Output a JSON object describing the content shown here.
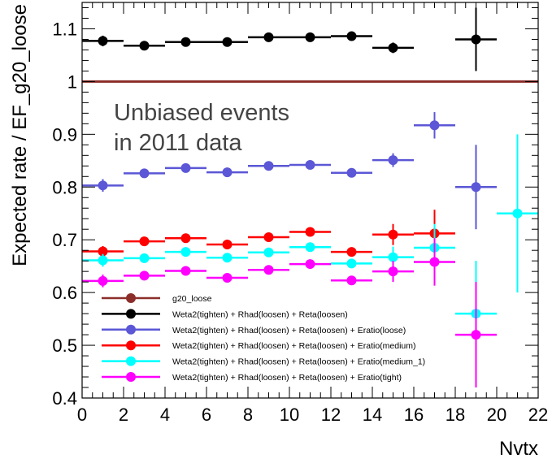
{
  "chart_data": {
    "type": "scatter",
    "title": "",
    "annotation": [
      "Unbiased events",
      "in 2011 data"
    ],
    "xlabel": "Nvtx",
    "ylabel": "Expected rate / EF_g20_loose",
    "xlim": [
      0,
      22
    ],
    "ylim": [
      0.4,
      1.15
    ],
    "x_ticks": [
      0,
      2,
      4,
      6,
      8,
      10,
      12,
      14,
      16,
      18,
      20,
      22
    ],
    "y_ticks": [
      0.4,
      0.5,
      0.6,
      0.7,
      0.8,
      0.9,
      1,
      1.1
    ],
    "x_tick_labels": [
      "0",
      "2",
      "4",
      "6",
      "8",
      "10",
      "12",
      "14",
      "16",
      "18",
      "20",
      "22"
    ],
    "y_tick_labels": [
      "0.4",
      "0.5",
      "0.6",
      "0.7",
      "0.8",
      "0.9",
      "1",
      "1.1"
    ],
    "grid": false,
    "legend_position": "bottom-left",
    "reference_line": {
      "name": "g20_loose",
      "y": 1.0,
      "color": "#8b2e2a"
    },
    "series": [
      {
        "name": "g20_loose",
        "color": "#8b2e2a",
        "x": [],
        "y": [],
        "yerr": [],
        "xerr": []
      },
      {
        "name": "Weta2(tighten) + Rhad(loosen) + Reta(loosen)",
        "color": "#000000",
        "x": [
          1,
          3,
          5,
          7,
          9,
          11,
          13,
          15,
          19
        ],
        "y": [
          1.077,
          1.068,
          1.075,
          1.075,
          1.084,
          1.084,
          1.086,
          1.064,
          1.08
        ],
        "yerr": [
          0.01,
          0.005,
          0.005,
          0.005,
          0.006,
          0.006,
          0.007,
          0.01,
          0.06
        ],
        "xerr": [
          1,
          1,
          1,
          1,
          1,
          1,
          1,
          1,
          1
        ]
      },
      {
        "name": "Weta2(tighten) + Rhad(loosen) + Reta(loosen) + Eratio(loose)",
        "color": "#5b57d6",
        "x": [
          1,
          3,
          5,
          7,
          9,
          11,
          13,
          15,
          17,
          19
        ],
        "y": [
          0.803,
          0.826,
          0.836,
          0.828,
          0.84,
          0.842,
          0.827,
          0.851,
          0.917,
          0.8
        ],
        "yerr": [
          0.012,
          0.006,
          0.006,
          0.006,
          0.006,
          0.007,
          0.008,
          0.013,
          0.025,
          0.08
        ],
        "xerr": [
          1,
          1,
          1,
          1,
          1,
          1,
          1,
          1,
          1,
          1
        ]
      },
      {
        "name": "Weta2(tighten) + Rhad(loosen) + Reta(loosen) + Eratio(medium)",
        "color": "#ff0000",
        "x": [
          1,
          3,
          5,
          7,
          9,
          11,
          13,
          15,
          17
        ],
        "y": [
          0.678,
          0.697,
          0.703,
          0.691,
          0.705,
          0.715,
          0.677,
          0.71,
          0.712
        ],
        "yerr": [
          0.01,
          0.006,
          0.006,
          0.006,
          0.006,
          0.006,
          0.008,
          0.02,
          0.045
        ],
        "xerr": [
          1,
          1,
          1,
          1,
          1,
          1,
          1,
          1,
          1
        ]
      },
      {
        "name": "Weta2(tighten) + Rhad(loosen) + Reta(loosen) + Eratio(medium_1)",
        "color": "#00ffff",
        "x": [
          1,
          3,
          5,
          7,
          9,
          11,
          13,
          15,
          17,
          19,
          21
        ],
        "y": [
          0.661,
          0.665,
          0.677,
          0.666,
          0.676,
          0.686,
          0.655,
          0.667,
          0.685,
          0.56,
          0.75
        ],
        "yerr": [
          0.012,
          0.006,
          0.006,
          0.006,
          0.006,
          0.007,
          0.008,
          0.02,
          0.045,
          0.1,
          0.15
        ],
        "xerr": [
          1,
          1,
          1,
          1,
          1,
          1,
          1,
          1,
          1,
          1,
          1
        ]
      },
      {
        "name": "Weta2(tighten) + Rhad(loosen) + Reta(loosen) + Eratio(tight)",
        "color": "#ff00ff",
        "x": [
          1,
          3,
          5,
          7,
          9,
          11,
          13,
          15,
          17,
          19
        ],
        "y": [
          0.622,
          0.632,
          0.641,
          0.628,
          0.643,
          0.654,
          0.623,
          0.64,
          0.658,
          0.52
        ],
        "yerr": [
          0.012,
          0.006,
          0.006,
          0.006,
          0.006,
          0.006,
          0.008,
          0.02,
          0.045,
          0.1
        ],
        "xerr": [
          1,
          1,
          1,
          1,
          1,
          1,
          1,
          1,
          1,
          1
        ]
      }
    ]
  }
}
